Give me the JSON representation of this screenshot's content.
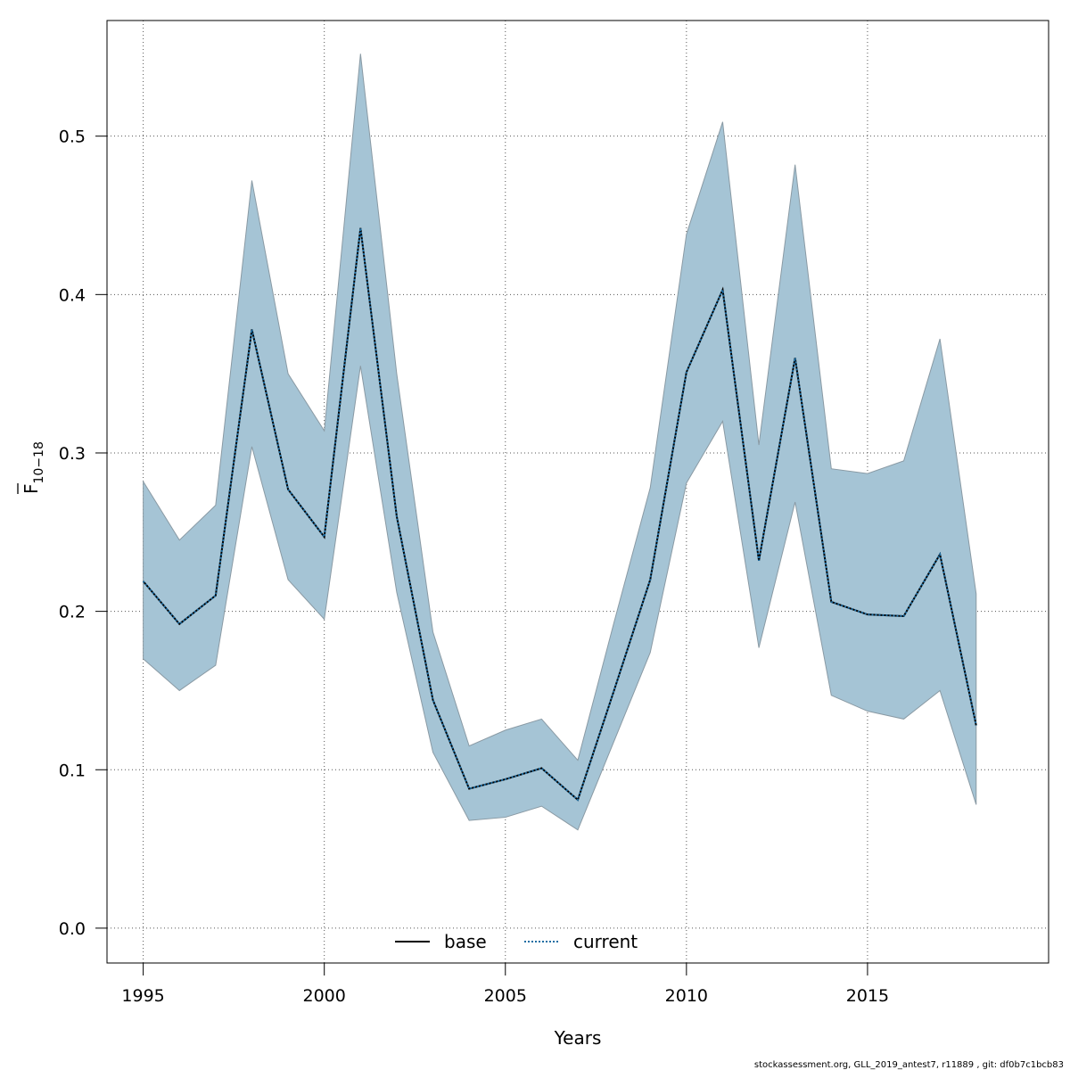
{
  "chart_data": {
    "type": "line",
    "xlabel": "Years",
    "ylabel_main": "F",
    "ylabel_sub": "10−18",
    "x": [
      1995,
      1996,
      1997,
      1998,
      1999,
      2000,
      2001,
      2002,
      2003,
      2004,
      2005,
      2006,
      2007,
      2008,
      2009,
      2010,
      2011,
      2012,
      2013,
      2014,
      2015,
      2016,
      2017,
      2018
    ],
    "xlim": [
      1994,
      2020
    ],
    "ylim": [
      -0.022,
      0.573
    ],
    "xticks": [
      1995,
      2000,
      2005,
      2010,
      2015
    ],
    "yticks": [
      0.0,
      0.1,
      0.2,
      0.3,
      0.4,
      0.5
    ],
    "ytick_labels": [
      "0.0",
      "0.1",
      "0.2",
      "0.3",
      "0.4",
      "0.5"
    ],
    "grid": true,
    "series": [
      {
        "name": "base",
        "style": "solid",
        "color": "#000000",
        "values": [
          0.219,
          0.192,
          0.21,
          0.378,
          0.277,
          0.247,
          0.442,
          0.26,
          0.144,
          0.088,
          0.094,
          0.101,
          0.081,
          0.15,
          0.22,
          0.351,
          0.403,
          0.232,
          0.36,
          0.206,
          0.198,
          0.197,
          0.236,
          0.128
        ]
      },
      {
        "name": "current",
        "style": "dotted",
        "color": "#1f6ea3",
        "values": [
          0.219,
          0.192,
          0.21,
          0.378,
          0.277,
          0.247,
          0.442,
          0.26,
          0.144,
          0.088,
          0.094,
          0.101,
          0.081,
          0.15,
          0.22,
          0.351,
          0.403,
          0.232,
          0.36,
          0.206,
          0.198,
          0.197,
          0.236,
          0.128
        ]
      }
    ],
    "band": {
      "color": "#a5c4d5",
      "edge_color": "#8a9aa4",
      "lower": [
        0.17,
        0.15,
        0.166,
        0.304,
        0.22,
        0.195,
        0.355,
        0.212,
        0.111,
        0.068,
        0.07,
        0.077,
        0.062,
        0.118,
        0.174,
        0.281,
        0.32,
        0.177,
        0.269,
        0.147,
        0.137,
        0.132,
        0.15,
        0.078
      ],
      "upper": [
        0.282,
        0.245,
        0.267,
        0.472,
        0.35,
        0.314,
        0.552,
        0.35,
        0.187,
        0.115,
        0.125,
        0.132,
        0.106,
        0.193,
        0.278,
        0.438,
        0.509,
        0.305,
        0.482,
        0.29,
        0.287,
        0.295,
        0.372,
        0.211
      ]
    },
    "legend": {
      "position": "bottom-center"
    }
  },
  "footer": "stockassessment.org, GLL_2019_antest7, r11889 , git: df0b7c1bcb83"
}
